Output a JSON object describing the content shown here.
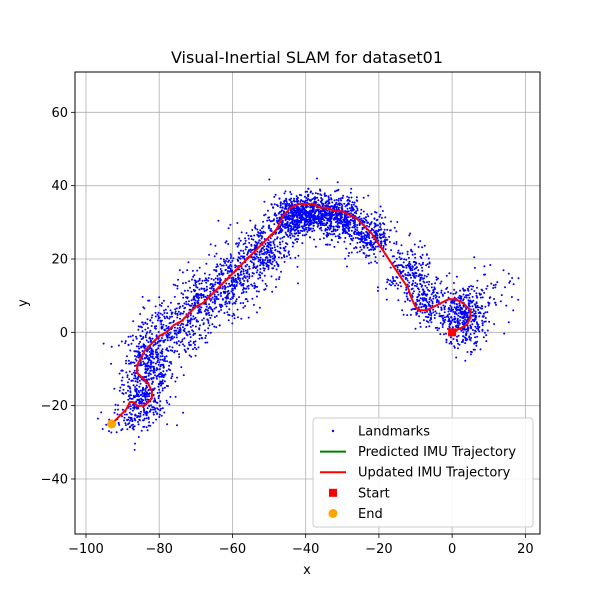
{
  "chart_data": {
    "type": "scatter",
    "title": "Visual-Inertial SLAM for dataset01",
    "xlabel": "x",
    "ylabel": "y",
    "xlim": [
      -103,
      24
    ],
    "ylim": [
      -55,
      71
    ],
    "xticks": [
      -100,
      -80,
      -60,
      -40,
      -20,
      0,
      20
    ],
    "yticks": [
      -40,
      -20,
      0,
      20,
      40,
      60
    ],
    "grid": true,
    "legend_position": "lower-right",
    "series": [
      {
        "name": "Landmarks",
        "kind": "scatter",
        "color": "#0000ff",
        "clusters": [
          {
            "cx": -83,
            "cy": -10,
            "sx": 3.5,
            "sy": 6,
            "n": 520
          },
          {
            "cx": -85,
            "cy": -20,
            "sx": 3,
            "sy": 3,
            "n": 140
          },
          {
            "cx": -88,
            "cy": -24,
            "sx": 3,
            "sy": 2,
            "n": 60
          },
          {
            "cx": -76,
            "cy": 1,
            "sx": 4,
            "sy": 4,
            "n": 220
          },
          {
            "cx": -68,
            "cy": 8,
            "sx": 4,
            "sy": 4,
            "n": 260
          },
          {
            "cx": -60,
            "cy": 14,
            "sx": 4,
            "sy": 4,
            "n": 300
          },
          {
            "cx": -52,
            "cy": 22,
            "sx": 3.5,
            "sy": 4,
            "n": 320
          },
          {
            "cx": -44,
            "cy": 31,
            "sx": 3,
            "sy": 3,
            "n": 420
          },
          {
            "cx": -38,
            "cy": 33,
            "sx": 3,
            "sy": 2.5,
            "n": 420
          },
          {
            "cx": -30,
            "cy": 31,
            "sx": 3,
            "sy": 3,
            "n": 420
          },
          {
            "cx": -22,
            "cy": 26,
            "sx": 3,
            "sy": 3,
            "n": 260
          },
          {
            "cx": -12,
            "cy": 16,
            "sx": 3,
            "sy": 4,
            "n": 200
          },
          {
            "cx": -6,
            "cy": 8,
            "sx": 3,
            "sy": 3,
            "n": 200
          },
          {
            "cx": 3,
            "cy": 4,
            "sx": 3,
            "sy": 4,
            "n": 420
          },
          {
            "cx": 10,
            "cy": 10,
            "sx": 4,
            "sy": 4,
            "n": 60
          }
        ]
      },
      {
        "name": "Predicted IMU Trajectory",
        "kind": "line",
        "color": "#008000",
        "x": [],
        "y": []
      },
      {
        "name": "Updated IMU Trajectory",
        "kind": "line",
        "color": "#ff0000",
        "x": [
          0,
          2,
          4,
          5,
          5,
          3,
          1,
          -1,
          -3,
          -5,
          -7,
          -9,
          -10,
          -11,
          -12,
          -14,
          -16,
          -18,
          -20,
          -22,
          -24,
          -26,
          -28,
          -30,
          -32,
          -34,
          -36,
          -38,
          -40,
          -42,
          -44,
          -45,
          -46,
          -47,
          -48,
          -50,
          -52,
          -54,
          -56,
          -58,
          -60,
          -62,
          -64,
          -66,
          -68,
          -70,
          -72,
          -74,
          -76,
          -78,
          -80,
          -82,
          -84,
          -85,
          -86,
          -86,
          -85,
          -84,
          -83,
          -82,
          -82,
          -83,
          -84,
          -85,
          -86,
          -87,
          -88,
          -89,
          -90,
          -91,
          -92,
          -93
        ],
        "y": [
          0,
          1,
          2,
          4,
          6,
          8,
          9,
          9,
          8,
          7,
          6,
          6,
          7,
          9,
          12,
          15,
          18,
          21,
          24,
          27,
          29,
          31,
          32,
          33,
          33,
          34,
          34,
          35,
          35,
          35,
          34,
          33,
          32,
          30,
          28,
          26,
          24,
          22,
          20,
          18,
          16,
          14,
          12,
          10,
          8,
          7,
          5,
          3,
          2,
          0,
          -1,
          -3,
          -5,
          -7,
          -9,
          -11,
          -12,
          -13,
          -14,
          -16,
          -18,
          -19,
          -20,
          -20,
          -20,
          -19,
          -19,
          -21,
          -22,
          -23,
          -24,
          -25
        ]
      }
    ],
    "markers": [
      {
        "name": "Start",
        "shape": "square",
        "color": "#ff0000",
        "x": 0,
        "y": 0
      },
      {
        "name": "End",
        "shape": "circle",
        "color": "#ffa500",
        "x": -93,
        "y": -25
      }
    ]
  }
}
